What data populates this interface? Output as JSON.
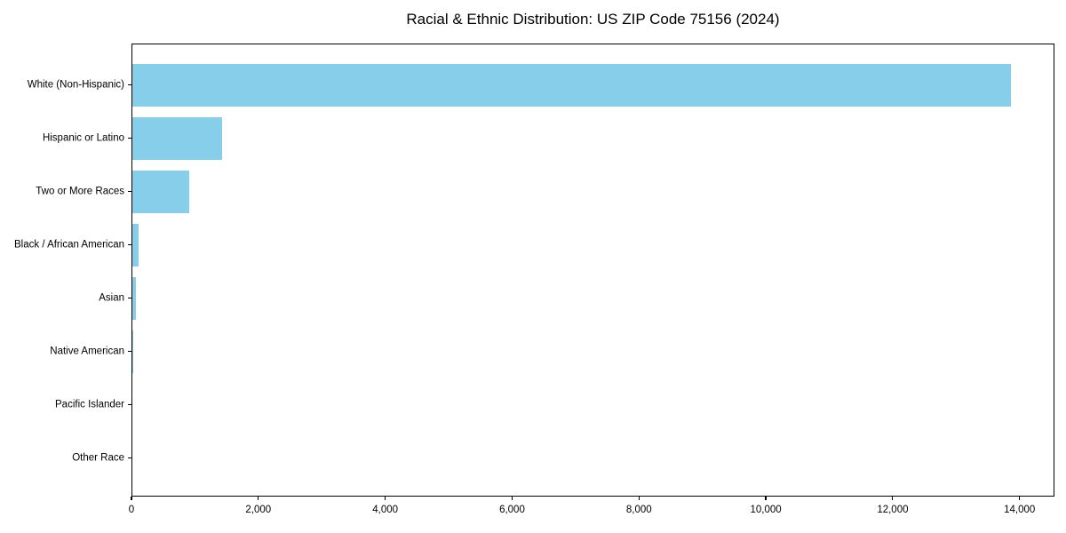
{
  "chart_data": {
    "type": "bar",
    "orientation": "horizontal",
    "title": "Racial & Ethnic Distribution: US ZIP Code 75156 (2024)",
    "categories": [
      "White (Non-Hispanic)",
      "Hispanic or Latino",
      "Two or More Races",
      "Black / African American",
      "Asian",
      "Native American",
      "Pacific Islander",
      "Other Race"
    ],
    "values": [
      13850,
      1410,
      900,
      100,
      60,
      20,
      0,
      0
    ],
    "xlabel": "",
    "ylabel": "",
    "xlim": [
      0,
      14550
    ],
    "x_ticks": [
      0,
      2000,
      4000,
      6000,
      8000,
      10000,
      12000,
      14000
    ],
    "x_tick_labels": [
      "0",
      "2,000",
      "4,000",
      "6,000",
      "8,000",
      "10,000",
      "12,000",
      "14,000"
    ],
    "grid": false,
    "legend": false,
    "bar_color": "#87CEEB",
    "spine_color": "#000000",
    "background_color": "#FFFFFF"
  }
}
